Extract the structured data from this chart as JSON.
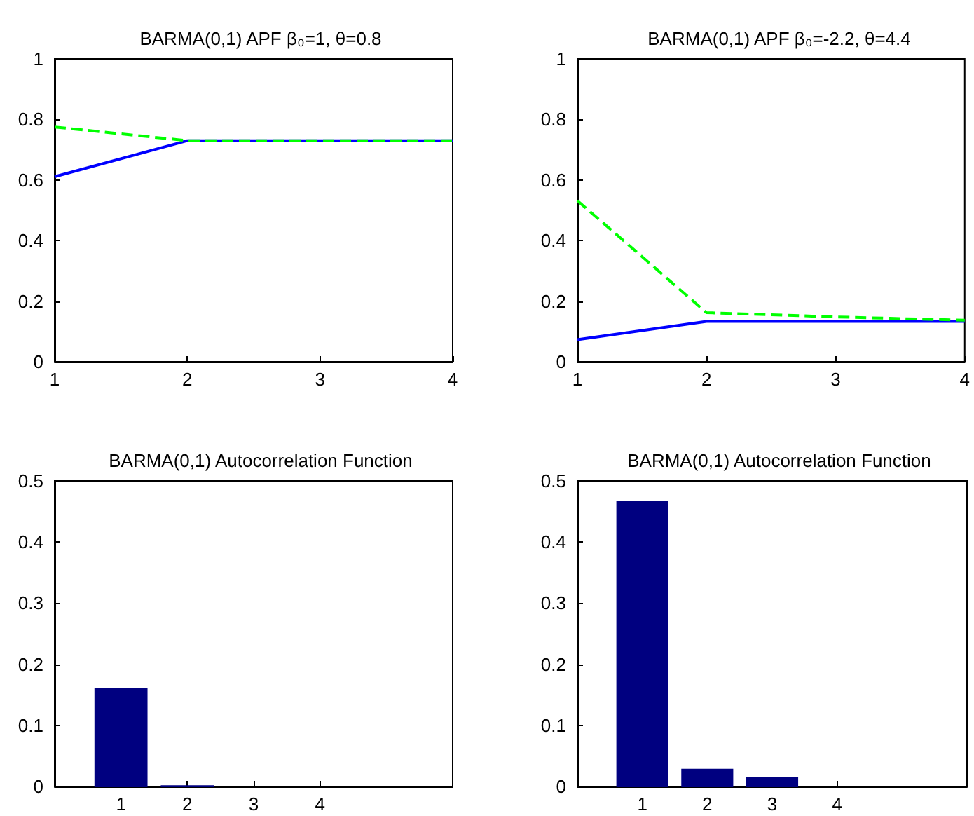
{
  "chart_data": [
    {
      "type": "line",
      "title": "BARMA(0,1) APF β₀=1, θ=0.8",
      "x": [
        1,
        2,
        3,
        4
      ],
      "xlim": [
        1,
        4
      ],
      "xticks": [
        1,
        2,
        3,
        4
      ],
      "ylim": [
        0,
        1
      ],
      "yticks": [
        0,
        0.2,
        0.4,
        0.6,
        0.8,
        1
      ],
      "series": [
        {
          "color": "#0000ff",
          "line_style": "solid",
          "values": [
            0.611,
            0.73,
            0.73,
            0.73
          ]
        },
        {
          "color": "#00ff00",
          "line_style": "dashed",
          "values": [
            0.775,
            0.73,
            0.73,
            0.73
          ]
        }
      ]
    },
    {
      "type": "line",
      "title": "BARMA(0,1) APF β₀=-2.2, θ=4.4",
      "x": [
        1,
        2,
        3,
        4
      ],
      "xlim": [
        1,
        4
      ],
      "xticks": [
        1,
        2,
        3,
        4
      ],
      "ylim": [
        0,
        1
      ],
      "yticks": [
        0,
        0.2,
        0.4,
        0.6,
        0.8,
        1
      ],
      "series": [
        {
          "color": "#0000ff",
          "line_style": "solid",
          "values": [
            0.073,
            0.133,
            0.133,
            0.133
          ]
        },
        {
          "color": "#00ff00",
          "line_style": "dashed",
          "values": [
            0.532,
            0.162,
            0.148,
            0.137
          ]
        }
      ]
    },
    {
      "type": "bar",
      "title": "BARMA(0,1) Autocorrelation Function",
      "x": [
        1,
        2,
        3,
        4
      ],
      "xlim": [
        0,
        6
      ],
      "xticks": [
        1,
        2,
        3,
        4
      ],
      "ylim": [
        0,
        0.5
      ],
      "yticks": [
        0,
        0.1,
        0.2,
        0.3,
        0.4,
        0.5
      ],
      "color": "#000080",
      "values": [
        0.161,
        0.002,
        0,
        0
      ]
    },
    {
      "type": "bar",
      "title": "BARMA(0,1) Autocorrelation Function",
      "x": [
        1,
        2,
        3,
        4
      ],
      "xlim": [
        0,
        6
      ],
      "xticks": [
        1,
        2,
        3,
        4
      ],
      "ylim": [
        0,
        0.5
      ],
      "yticks": [
        0,
        0.1,
        0.2,
        0.3,
        0.4,
        0.5
      ],
      "color": "#000080",
      "values": [
        0.468,
        0.029,
        0.016,
        0
      ]
    }
  ]
}
